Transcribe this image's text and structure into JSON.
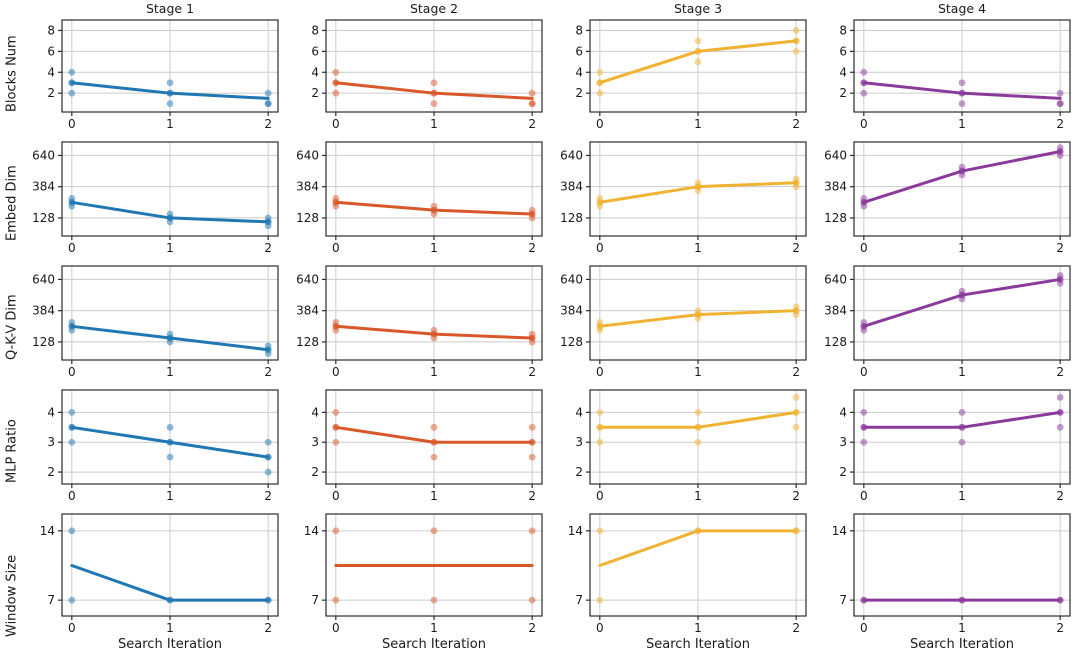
{
  "chart_data": {
    "type": "line",
    "figure": "5x4 grid of subplots (rows = searched hyper-parameters, columns = network stages)",
    "x": [
      0,
      1,
      2
    ],
    "xlabel": "Search Iteration",
    "col_titles": [
      "Stage 1",
      "Stage 2",
      "Stage 3",
      "Stage 4"
    ],
    "series_colors": [
      "#1f77b4",
      "#d9582a",
      "#f0b232",
      "#8a3a9b"
    ],
    "legend": "none",
    "grid": true,
    "rows": [
      {
        "label": "Blocks Num",
        "yticks": [
          2,
          4,
          6,
          8
        ],
        "ylim": [
          0.2,
          9.0
        ],
        "cells": [
          {
            "line": [
              3,
              2,
              1.5
            ],
            "scatter": [
              [
                4,
                3,
                3,
                2
              ],
              [
                3,
                2,
                2,
                1
              ],
              [
                2,
                1,
                1
              ]
            ]
          },
          {
            "line": [
              3,
              2,
              1.5
            ],
            "scatter": [
              [
                4,
                3,
                3,
                2
              ],
              [
                3,
                2,
                2,
                1
              ],
              [
                2,
                1,
                1
              ]
            ]
          },
          {
            "line": [
              3,
              6,
              7
            ],
            "scatter": [
              [
                4,
                3,
                3,
                2
              ],
              [
                7,
                6,
                6,
                5
              ],
              [
                8,
                7,
                7,
                6
              ]
            ]
          },
          {
            "line": [
              3,
              2,
              1.5
            ],
            "scatter": [
              [
                4,
                3,
                3,
                2
              ],
              [
                3,
                2,
                2,
                1
              ],
              [
                2,
                1,
                1
              ]
            ]
          }
        ]
      },
      {
        "label": "Embed Dim",
        "yticks": [
          128,
          384,
          640
        ],
        "ylim": [
          -20,
          750
        ],
        "cells": [
          {
            "line": [
              256,
              128,
              96
            ],
            "scatter": [
              [
                288,
                256,
                256,
                224
              ],
              [
                160,
                128,
                128,
                96
              ],
              [
                128,
                96,
                96,
                64
              ]
            ]
          },
          {
            "line": [
              256,
              192,
              160
            ],
            "scatter": [
              [
                288,
                256,
                256,
                224
              ],
              [
                224,
                192,
                192,
                160
              ],
              [
                192,
                160,
                160,
                128
              ]
            ]
          },
          {
            "line": [
              256,
              384,
              416
            ],
            "scatter": [
              [
                288,
                256,
                256,
                224
              ],
              [
                416,
                384,
                384,
                352
              ],
              [
                448,
                416,
                416,
                384
              ]
            ]
          },
          {
            "line": [
              256,
              512,
              672
            ],
            "scatter": [
              [
                288,
                256,
                256,
                224
              ],
              [
                544,
                512,
                512,
                480
              ],
              [
                704,
                672,
                672,
                640
              ]
            ]
          }
        ]
      },
      {
        "label": "Q-K-V Dim",
        "yticks": [
          128,
          384,
          640
        ],
        "ylim": [
          -20,
          750
        ],
        "cells": [
          {
            "line": [
              256,
              160,
              64
            ],
            "scatter": [
              [
                288,
                256,
                256,
                224
              ],
              [
                192,
                160,
                160,
                128
              ],
              [
                96,
                64,
                64,
                32
              ]
            ]
          },
          {
            "line": [
              256,
              192,
              160
            ],
            "scatter": [
              [
                288,
                256,
                256,
                224
              ],
              [
                224,
                192,
                192,
                160
              ],
              [
                192,
                160,
                160,
                128
              ]
            ]
          },
          {
            "line": [
              256,
              352,
              384
            ],
            "scatter": [
              [
                288,
                256,
                256,
                224
              ],
              [
                384,
                352,
                352,
                320
              ],
              [
                416,
                384,
                384,
                352
              ]
            ]
          },
          {
            "line": [
              256,
              512,
              640
            ],
            "scatter": [
              [
                288,
                256,
                256,
                224
              ],
              [
                544,
                512,
                512,
                480
              ],
              [
                672,
                640,
                640,
                608
              ]
            ]
          }
        ]
      },
      {
        "label": "MLP Ratio",
        "yticks": [
          2,
          3,
          4
        ],
        "ylim": [
          1.6,
          4.75
        ],
        "cells": [
          {
            "line": [
              3.5,
              3,
              2.5
            ],
            "scatter": [
              [
                4,
                3.5,
                3.5,
                3
              ],
              [
                3.5,
                3,
                3,
                2.5
              ],
              [
                3,
                2.5,
                2.5,
                2
              ]
            ]
          },
          {
            "line": [
              3.5,
              3,
              3
            ],
            "scatter": [
              [
                4,
                3.5,
                3.5,
                3
              ],
              [
                3.5,
                3,
                3,
                2.5
              ],
              [
                3.5,
                3,
                3,
                2.5
              ]
            ]
          },
          {
            "line": [
              3.5,
              3.5,
              4
            ],
            "scatter": [
              [
                4,
                3.5,
                3.5,
                3
              ],
              [
                4,
                3.5,
                3.5,
                3
              ],
              [
                4.5,
                4,
                4,
                3.5
              ]
            ]
          },
          {
            "line": [
              3.5,
              3.5,
              4
            ],
            "scatter": [
              [
                4,
                3.5,
                3.5,
                3
              ],
              [
                4,
                3.5,
                3.5,
                3
              ],
              [
                4.5,
                4,
                4,
                3.5
              ]
            ]
          }
        ]
      },
      {
        "label": "Window Size",
        "yticks": [
          7,
          14
        ],
        "ylim": [
          5.4,
          15.7
        ],
        "cells": [
          {
            "line": [
              10.5,
              7,
              7
            ],
            "scatter": [
              [
                14,
                7
              ],
              [
                7,
                7
              ],
              [
                7,
                7
              ]
            ]
          },
          {
            "line": [
              10.5,
              10.5,
              10.5
            ],
            "scatter": [
              [
                14,
                7
              ],
              [
                14,
                7
              ],
              [
                14,
                7
              ]
            ]
          },
          {
            "line": [
              10.5,
              14,
              14
            ],
            "scatter": [
              [
                14,
                7
              ],
              [
                14,
                14
              ],
              [
                14,
                14
              ]
            ]
          },
          {
            "line": [
              7,
              7,
              7
            ],
            "scatter": [
              [
                7,
                7
              ],
              [
                7,
                7
              ],
              [
                7,
                7
              ]
            ]
          }
        ]
      }
    ],
    "style": {
      "spine_color": "#2b2b2b",
      "grid_color": "#cccccc",
      "text_color": "#1a1a1a",
      "background": "#ffffff"
    }
  }
}
